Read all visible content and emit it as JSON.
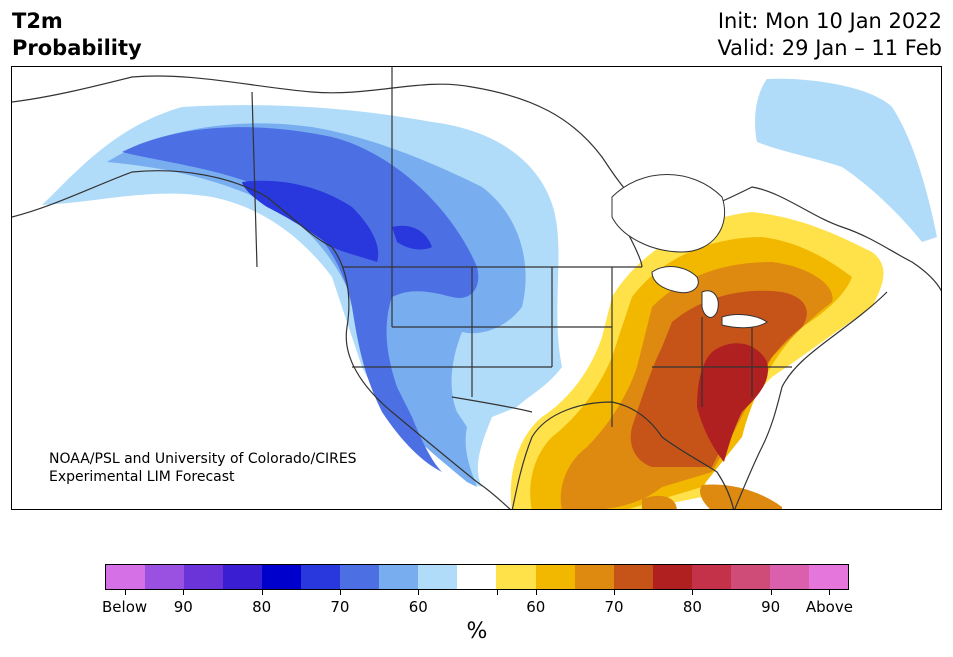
{
  "header": {
    "variable": "T2m",
    "product": "Probability",
    "init": "Init: Mon 10 Jan 2022",
    "valid": "Valid: 29 Jan – 11 Feb"
  },
  "credit": {
    "line1": "NOAA/PSL and University of Colorado/CIRES",
    "line2": "Experimental LIM Forecast"
  },
  "colorbar": {
    "colors": [
      "#d670e6",
      "#9a50e0",
      "#6a34d8",
      "#3a1ed2",
      "#0000cc",
      "#2838dc",
      "#4c70e4",
      "#78aef0",
      "#b0dcfa",
      "#ffffff",
      "#ffe24a",
      "#f2b800",
      "#de8a10",
      "#c65418",
      "#b02020",
      "#c4324a",
      "#d04c78",
      "#da60ae",
      "#e476dc"
    ],
    "tick_labels": [
      "Below",
      "90",
      "80",
      "70",
      "60",
      "",
      "60",
      "70",
      "80",
      "90",
      "Above"
    ],
    "unit": "%"
  },
  "map_layers": {
    "below_60": "#b0dcfa",
    "below_70": "#78aef0",
    "below_80": "#4c70e4",
    "below_90": "#2838dc",
    "above_60": "#ffe24a",
    "above_70": "#f2b800",
    "above_80": "#de8a10",
    "above_90": "#c65418",
    "above_max": "#b02020",
    "land_outline": "#333333"
  }
}
